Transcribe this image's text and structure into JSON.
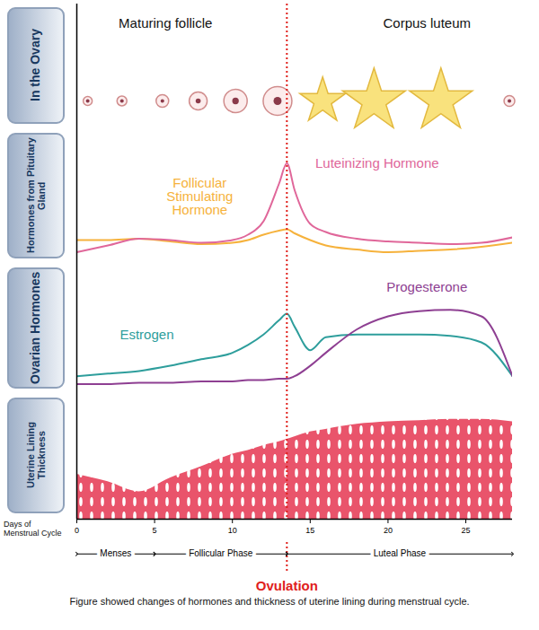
{
  "chart_data": [
    {
      "type": "scatter",
      "title": "In the Ovary",
      "xlim": [
        0,
        28
      ],
      "tick_labels": false,
      "series": [
        {
          "name": "Maturing follicle",
          "marker": "circle",
          "color": "#fcecec",
          "x": [
            0.7,
            2.9,
            5.5,
            7.8,
            10.2,
            12.9,
            27.8
          ],
          "size": [
            5,
            5.5,
            7,
            10,
            13,
            16,
            6
          ]
        },
        {
          "name": "Corpus luteum",
          "marker": "star",
          "color": "#f9e27d",
          "x": [
            15.8,
            19.1,
            23.4
          ],
          "size": [
            16,
            22,
            22
          ]
        }
      ]
    },
    {
      "type": "line",
      "title": "Hormones from Pituitary Gland",
      "xlim": [
        0,
        28
      ],
      "ylim": [
        0,
        100
      ],
      "tick_labels": false,
      "x": [
        0,
        2,
        4,
        6,
        8,
        10,
        11,
        12,
        13,
        13.5,
        14,
        15,
        16,
        18,
        20,
        22,
        24,
        26,
        28
      ],
      "series": [
        {
          "name": "Follicular Stimulating Hormone",
          "color": "#f6b23c",
          "values": [
            18,
            18,
            19,
            17,
            15,
            16,
            18,
            22,
            25,
            26,
            23,
            18,
            14,
            11,
            9,
            10,
            11,
            13,
            16
          ]
        },
        {
          "name": "Luteinizing Hormone",
          "color": "#e0679a",
          "values": [
            9,
            14,
            19,
            18,
            16,
            18,
            22,
            32,
            60,
            75,
            55,
            30,
            24,
            19,
            17,
            16,
            15,
            16,
            20
          ]
        }
      ]
    },
    {
      "type": "line",
      "title": "Ovarian Hormones",
      "xlim": [
        0,
        28
      ],
      "ylim": [
        0,
        100
      ],
      "tick_labels": false,
      "x": [
        0,
        2,
        4,
        6,
        8,
        10,
        11,
        12,
        13,
        13.5,
        14,
        15,
        16,
        18,
        20,
        22,
        24,
        26,
        28
      ],
      "series": [
        {
          "name": "Estrogen",
          "color": "#2e9e9c",
          "values": [
            14,
            16,
            18,
            22,
            27,
            32,
            38,
            46,
            57,
            62,
            52,
            34,
            44,
            46,
            46,
            46,
            45,
            40,
            14
          ]
        },
        {
          "name": "Progesterone",
          "color": "#8e3f92",
          "values": [
            8,
            8,
            9,
            9,
            10,
            10,
            11,
            11,
            12,
            12,
            14,
            22,
            32,
            50,
            60,
            64,
            65,
            60,
            14
          ]
        }
      ]
    },
    {
      "type": "area",
      "title": "Uterine Lining Thickness",
      "xlim": [
        0,
        28
      ],
      "ylim": [
        0,
        100
      ],
      "xticks": [
        0,
        5,
        10,
        15,
        20,
        25
      ],
      "xlabel": "Days of Menstrual Cycle",
      "tick_labels": "x",
      "x": [
        0,
        2,
        4,
        6,
        8,
        10,
        11,
        12,
        13,
        13.5,
        14,
        15,
        16,
        18,
        20,
        22,
        24,
        26,
        28
      ],
      "values": [
        36,
        30,
        22,
        33,
        42,
        52,
        55,
        59,
        62,
        64,
        66,
        70,
        72,
        76,
        78,
        79,
        80,
        80,
        78
      ],
      "color": "#e9546b"
    }
  ],
  "phases": [
    {
      "label": "Menses",
      "start": 0,
      "end": 5
    },
    {
      "label": "Follicular Phase",
      "start": 5,
      "end": 13.5
    },
    {
      "label": "Luteal Phase",
      "start": 13.5,
      "end": 28
    }
  ],
  "ovulation": {
    "label": "Ovulation",
    "x": 13.5,
    "color": "#e0201b",
    "line_style": "dotted"
  },
  "caption": "Figure showed changes of hormones and thickness of uterine lining during menstrual cycle."
}
